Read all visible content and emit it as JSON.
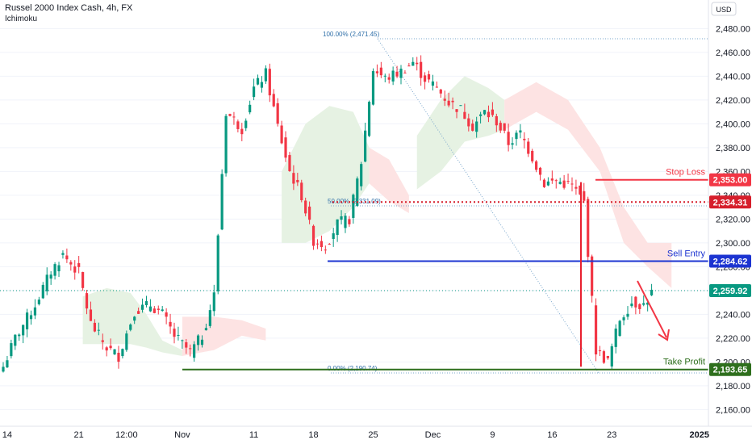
{
  "header": {
    "title": "Russel 2000 Index Cash, 4h, FX",
    "indicator": "Ichimoku"
  },
  "currency_button": "USD",
  "chart_data": {
    "type": "candlestick",
    "y_ticks": [
      2160,
      2180,
      2200,
      2220,
      2240,
      2260,
      2280,
      2300,
      2320,
      2340,
      2360,
      2380,
      2400,
      2420,
      2440,
      2460,
      2480
    ],
    "y_tick_labels": [
      "2,160.00",
      "2,180.00",
      "2,200.00",
      "2,220.00",
      "2,240.00",
      "2,260.00",
      "2,280.00",
      "2,300.00",
      "2,320.00",
      "2,340.00",
      "2,360.00",
      "2,380.00",
      "2,400.00",
      "2,420.00",
      "2,440.00",
      "2,460.00",
      "2,480.00"
    ],
    "ylim": [
      2146,
      2504
    ],
    "x_ticks": [
      {
        "label": "14",
        "bar": 1
      },
      {
        "label": "21",
        "bar": 19
      },
      {
        "label": "12:00",
        "bar": 31
      },
      {
        "label": "Nov",
        "bar": 45
      },
      {
        "label": "11",
        "bar": 63
      },
      {
        "label": "18",
        "bar": 78
      },
      {
        "label": "25",
        "bar": 93
      },
      {
        "label": "Dec",
        "bar": 108
      },
      {
        "label": "9",
        "bar": 123
      },
      {
        "label": "16",
        "bar": 138
      },
      {
        "label": "23",
        "bar": 153
      },
      {
        "label": "2025",
        "bar": 175
      }
    ],
    "x_bars": 178,
    "close_anchors": [
      [
        0,
        2196
      ],
      [
        3,
        2220
      ],
      [
        8,
        2248
      ],
      [
        12,
        2276
      ],
      [
        15,
        2290
      ],
      [
        19,
        2275
      ],
      [
        22,
        2232
      ],
      [
        26,
        2212
      ],
      [
        29,
        2205
      ],
      [
        33,
        2243
      ],
      [
        37,
        2248
      ],
      [
        40,
        2240
      ],
      [
        43,
        2222
      ],
      [
        47,
        2208
      ],
      [
        50,
        2222
      ],
      [
        53,
        2256
      ],
      [
        56,
        2410
      ],
      [
        60,
        2396
      ],
      [
        63,
        2430
      ],
      [
        66,
        2442
      ],
      [
        69,
        2398
      ],
      [
        72,
        2360
      ],
      [
        75,
        2340
      ],
      [
        78,
        2302
      ],
      [
        81,
        2298
      ],
      [
        84,
        2316
      ],
      [
        87,
        2320
      ],
      [
        90,
        2368
      ],
      [
        93,
        2446
      ],
      [
        96,
        2438
      ],
      [
        100,
        2444
      ],
      [
        103,
        2452
      ],
      [
        106,
        2438
      ],
      [
        109,
        2430
      ],
      [
        112,
        2418
      ],
      [
        115,
        2412
      ],
      [
        118,
        2398
      ],
      [
        121,
        2410
      ],
      [
        124,
        2402
      ],
      [
        127,
        2384
      ],
      [
        130,
        2392
      ],
      [
        133,
        2372
      ],
      [
        136,
        2350
      ],
      [
        139,
        2352
      ],
      [
        143,
        2348
      ],
      [
        146,
        2334
      ],
      [
        149,
        2210
      ],
      [
        152,
        2200
      ],
      [
        155,
        2236
      ],
      [
        158,
        2250
      ],
      [
        161,
        2248
      ],
      [
        163,
        2258
      ]
    ],
    "cloud_segments": [
      {
        "color": "bull",
        "upper": [
          [
            20,
            2255
          ],
          [
            26,
            2262
          ],
          [
            32,
            2258
          ],
          [
            36,
            2240
          ],
          [
            40,
            2218
          ],
          [
            45,
            2210
          ]
        ],
        "lower": [
          [
            20,
            2215
          ],
          [
            26,
            2215
          ],
          [
            32,
            2215
          ],
          [
            36,
            2212
          ],
          [
            40,
            2208
          ],
          [
            45,
            2205
          ]
        ]
      },
      {
        "color": "bear",
        "upper": [
          [
            45,
            2238
          ],
          [
            53,
            2238
          ],
          [
            60,
            2235
          ],
          [
            66,
            2228
          ]
        ],
        "lower": [
          [
            45,
            2205
          ],
          [
            53,
            2210
          ],
          [
            60,
            2222
          ],
          [
            66,
            2218
          ]
        ]
      },
      {
        "color": "bull",
        "upper": [
          [
            70,
            2360
          ],
          [
            76,
            2400
          ],
          [
            82,
            2415
          ],
          [
            88,
            2410
          ],
          [
            92,
            2380
          ]
        ],
        "lower": [
          [
            70,
            2300
          ],
          [
            76,
            2300
          ],
          [
            82,
            2310
          ],
          [
            88,
            2330
          ],
          [
            92,
            2350
          ]
        ]
      },
      {
        "color": "bear",
        "upper": [
          [
            92,
            2380
          ],
          [
            97,
            2370
          ],
          [
            102,
            2340
          ]
        ],
        "lower": [
          [
            92,
            2350
          ],
          [
            97,
            2335
          ],
          [
            102,
            2325
          ]
        ]
      },
      {
        "color": "bull",
        "upper": [
          [
            104,
            2390
          ],
          [
            110,
            2420
          ],
          [
            116,
            2440
          ],
          [
            122,
            2430
          ],
          [
            126,
            2420
          ]
        ],
        "lower": [
          [
            104,
            2345
          ],
          [
            110,
            2360
          ],
          [
            116,
            2385
          ],
          [
            122,
            2390
          ],
          [
            126,
            2395
          ]
        ]
      },
      {
        "color": "bear",
        "upper": [
          [
            126,
            2420
          ],
          [
            134,
            2435
          ],
          [
            142,
            2420
          ],
          [
            150,
            2380
          ],
          [
            156,
            2330
          ],
          [
            162,
            2300
          ],
          [
            168,
            2300
          ]
        ],
        "lower": [
          [
            126,
            2395
          ],
          [
            134,
            2410
          ],
          [
            142,
            2395
          ],
          [
            150,
            2360
          ],
          [
            156,
            2300
          ],
          [
            162,
            2280
          ],
          [
            168,
            2262
          ]
        ]
      }
    ],
    "fib": [
      {
        "label": "100.00% (2,471.45)",
        "value": 2471.45
      },
      {
        "label": "50.00% (2,331.09)",
        "value": 2331.09
      },
      {
        "label": "0.00% (2,190.74)",
        "value": 2190.74
      }
    ],
    "levels": [
      {
        "name": "Stop Loss",
        "value": 2353.0,
        "tag": "2,353.00",
        "color": "#f23645"
      },
      {
        "name": "",
        "value": 2334.31,
        "tag": "2,334.31",
        "color": "#d61f2c"
      },
      {
        "name": "Sell Entry",
        "value": 2284.62,
        "tag": "2,284.62",
        "color": "#1c34d1"
      },
      {
        "name": "",
        "value": 2259.92,
        "tag": "2,259.92",
        "color": "#089981"
      },
      {
        "name": "Take Profit",
        "value": 2193.65,
        "tag": "2,193.65",
        "color": "#2e6f1d"
      }
    ],
    "colors": {
      "up": "#089981",
      "down": "#f23645",
      "bull_cloud": "#e6f2e3",
      "bear_cloud": "#fde3e3",
      "fib": "#7aa7cc",
      "grid": "#f0f3fa",
      "axis_text": "#131722"
    }
  }
}
